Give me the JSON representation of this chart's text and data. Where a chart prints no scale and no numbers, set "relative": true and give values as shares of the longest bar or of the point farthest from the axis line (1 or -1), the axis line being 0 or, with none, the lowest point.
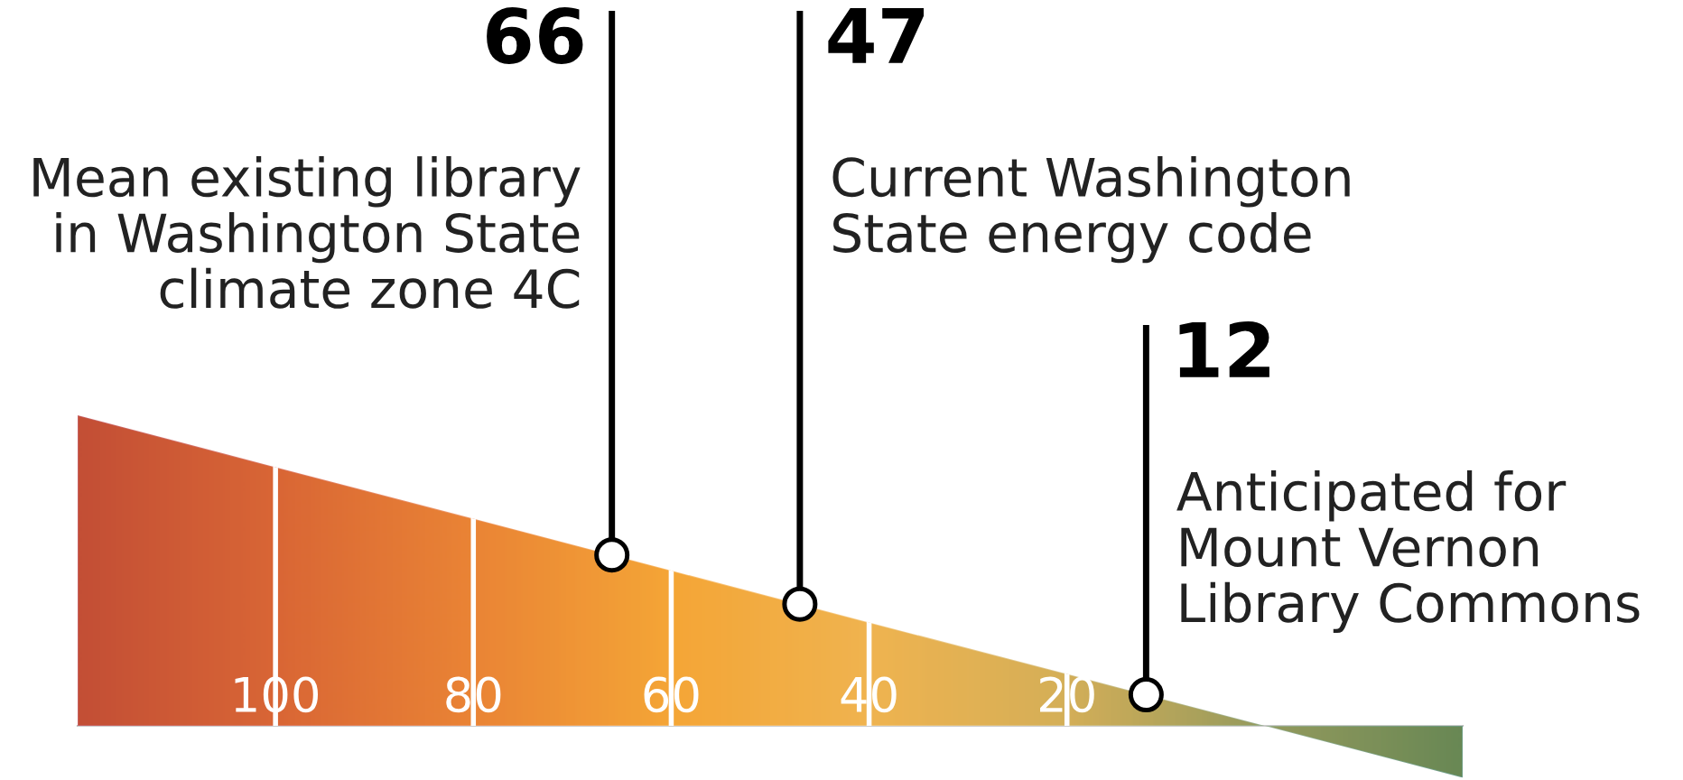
{
  "chart_data": {
    "type": "scatter",
    "relative": true,
    "xlim": [
      120,
      -20
    ],
    "xticks": [
      100,
      80,
      60,
      40,
      20
    ],
    "grid": "x",
    "series": [
      {
        "type": "area",
        "x": [
          120,
          100,
          80,
          60,
          40,
          20,
          0,
          -20
        ],
        "values": [
          1,
          0.833,
          0.667,
          0.5,
          0.333,
          0.167,
          0,
          -0.167
        ],
        "colors": [
          "#b0232b",
          "#d0452a",
          "#e8702a",
          "#f7a02c",
          "#f0b450",
          "#c9ad5c",
          "#6e9064",
          "#2e7557"
        ]
      },
      {
        "x": [
          66,
          47,
          12
        ],
        "values": [
          0.55,
          0.392,
          0.1
        ],
        "color": "#ffffff",
        "marker": "circle"
      }
    ],
    "annotations": [
      {
        "text": "66",
        "x": 66,
        "y": 0.55
      },
      "Mean existing library\nin Washington State\nclimate zone 4C",
      {
        "text": "47",
        "x": 47,
        "y": 0.392
      },
      "Current Washington\nState energy code",
      {
        "text": "12",
        "x": 12,
        "y": 0.1
      },
      "Anticipated for\nMount Vernon\nLibrary Commons"
    ]
  }
}
